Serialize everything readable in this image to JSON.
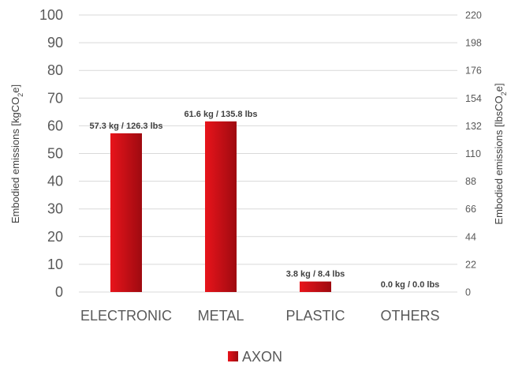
{
  "chart_data": {
    "type": "bar",
    "categories": [
      "ELECTRONIC",
      "METAL",
      "PLASTIC",
      "OTHERS"
    ],
    "series": [
      {
        "name": "AXON",
        "values": [
          57.3,
          61.6,
          3.8,
          0.0
        ],
        "data_labels": [
          "57.3 kg / 126.3 lbs",
          "61.6 kg / 135.8 lbs",
          "3.8 kg / 8.4 lbs",
          "0.0 kg / 0.0 lbs"
        ],
        "color": "#e8141b",
        "color_dark": "#9e0a10"
      }
    ],
    "ylim": [
      0,
      100
    ],
    "yticks": [
      "0",
      "10",
      "20",
      "30",
      "40",
      "50",
      "60",
      "70",
      "80",
      "90",
      "100"
    ],
    "y2lim": [
      0,
      220
    ],
    "y2ticks": [
      "0",
      "22",
      "44",
      "66",
      "88",
      "110",
      "132",
      "154",
      "176",
      "198",
      "220"
    ],
    "ylabel": {
      "main": "Embodied emissions [kgCO",
      "sub": "2",
      "tail": "e]"
    },
    "y2label": {
      "main": "Embodied emissions [lbsCO",
      "sub": "2",
      "tail": "e]"
    },
    "grid": true,
    "legend": "bottom",
    "gridline_color": "#d9d9d9"
  }
}
